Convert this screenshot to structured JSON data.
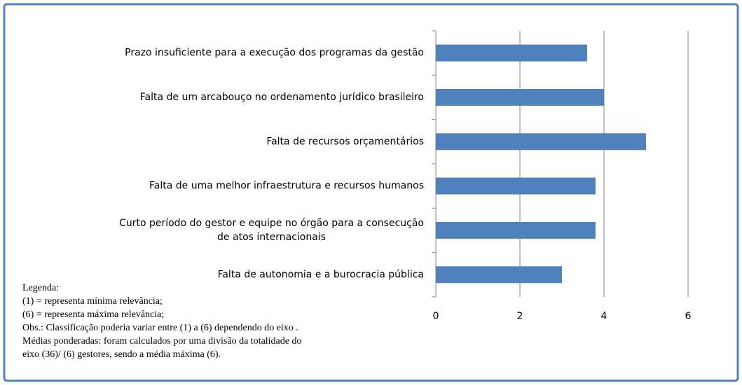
{
  "chart_data": {
    "type": "bar",
    "orientation": "horizontal",
    "categories": [
      "Prazo insuficiente para a execução dos programas da gestão",
      "Falta de um arcabouço no ordenamento jurídico brasileiro",
      "Falta de recursos orçamentários",
      "Falta de uma melhor infraestrutura e recursos humanos",
      "Curto período do gestor e equipe no órgão para a consecução\nde atos internacionais",
      "Falta de autonomia e a burocracia pública"
    ],
    "values": [
      3.6,
      4,
      5,
      3.8,
      3.8,
      3
    ],
    "color": "#4f81bd",
    "xlim": [
      0,
      6
    ],
    "xticks": [
      0,
      2,
      4,
      6
    ],
    "grid": true
  },
  "notes": [
    "Legenda:",
    "(1) = representa mínima relevância;",
    "(6) = representa máxima relevância;",
    "Obs.: Classificação poderia variar entre (1) a (6) dependendo do eixo .",
    "Médias ponderadas: foram calculados por uma divisão da totalidade do",
    "eixo (36)/ (6) gestores, sendo a média máxima (6)."
  ]
}
